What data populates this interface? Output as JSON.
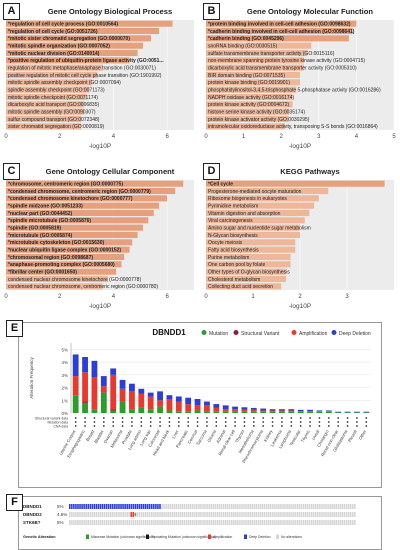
{
  "colors": {
    "bar": "#e7a07e",
    "bar_light": "#eeb79a",
    "panel_bg": "#ececec",
    "mutation": "#2a9d2a",
    "structural": "#8b1a4a",
    "amplification": "#e8392f",
    "deep_deletion": "#2b3fd6"
  },
  "panels": {
    "A": {
      "letter": "A",
      "title": "Gene Ontology Biological Process",
      "xlabel": "-log10P",
      "chart_data": {
        "type": "bar",
        "orientation": "horizontal",
        "categories": [
          "*regulation of cell cycle process (GO:0010564)",
          "*regulation of cell cycle (GO:0051726)",
          "*mitotic sister chromatid segregation (GO:0000070)",
          "*mitotic spindle organization (GO:0007052)",
          "*mitotic nuclear division (GO:0140014)",
          "*positive regulation of ubiquitin-protein ligase activity (GO:0051...",
          "regulation of mitotic metaphase/anaphase transition (GO:0030071)",
          "positive regulation of mitotic cell cycle phase transition (GO:1901992)",
          "mitotic spindle assembly checkpoint (GO:0007094)",
          "spindle assembly checkpoint (GO:0071173)",
          "mitotic spindle checkpoint (GO:0071174)",
          "dicarboxylic acid transport (GO:0006835)",
          "mitotic spindle assembly (GO:0090307)",
          "sulfur compound transport (GO:0072348)",
          "sister chromatid segregation (GO:0000819)"
        ],
        "values": [
          6.2,
          5.7,
          5.4,
          5.1,
          4.9,
          4.6,
          3.6,
          3.4,
          3.2,
          3.1,
          3.0,
          2.9,
          2.9,
          2.8,
          2.8
        ],
        "bold_count": 6,
        "xticks": [
          "0",
          "2",
          "4",
          "6"
        ],
        "xlim": [
          0,
          7
        ],
        "xlabel": "-log10P"
      }
    },
    "B": {
      "letter": "B",
      "title": "Gene Ontology Molecular Function",
      "xlabel": "-log10P",
      "chart_data": {
        "type": "bar",
        "orientation": "horizontal",
        "categories": [
          "*protein binding involved in cell-cell adhesion (GO:0098632)",
          "*cadherin binding involved in cell-cell adhesion (GO:0098641)",
          "*cadherin binding (GO:0045296)",
          "snoRNA binding (GO:0030515)",
          "sulfate transmembrane transporter activity (GO:0015116)",
          "non-membrane spanning protein tyrosine kinase activity (GO:0004715)",
          "dicarboxylic acid transmembrane transporter activity (GO:0005310)",
          "BIR domain binding (GO:0071535)",
          "protein kinase binding (GO:0019901)",
          "phosphatidylinositol-3,4,5-trisphosphate 5-phosphatase activity (GO:0016286)",
          "NADPH oxidase activity (GO:0016174)",
          "protein kinase activity (GO:0004672)",
          "histone serine kinase activity (GO:0035174)",
          "protein kinase activator activity (GO:0030295)",
          "intramolecular oxidoreductase activity, transposing S-S bonds (GO:0016864)"
        ],
        "values": [
          4.0,
          3.9,
          3.8,
          2.8,
          2.7,
          2.6,
          2.6,
          2.5,
          2.5,
          2.4,
          2.3,
          2.3,
          2.2,
          2.2,
          2.1
        ],
        "bold_count": 3,
        "xticks": [
          "0",
          "1",
          "2",
          "3",
          "4",
          "5"
        ],
        "xlim": [
          0,
          5
        ],
        "xlabel": "-log10P"
      }
    },
    "C": {
      "letter": "C",
      "title": "Gene Ontology Cellular Component",
      "xlabel": "-log10P",
      "chart_data": {
        "type": "bar",
        "orientation": "horizontal",
        "categories": [
          "*chromosome, centromeric region (GO:0000775)",
          "*condensed chromosome, centromeric region (GO:0000779)",
          "*condensed chromosome kinetochore (GO:0000777)",
          "*spindle midzone (GO:0051233)",
          "*nuclear part (GO:0044452)",
          "*spindle microtubule (GO:0005876)",
          "*spindle (GO:0005819)",
          "*microtubule (GO:0005874)",
          "*microtubule cytoskeleton (GO:0015630)",
          "*nuclear ubiquitin ligase complex (GO:0000152)",
          "*chromosomal region (GO:0098687)",
          "*anaphase-promoting complex (GO:0005680)",
          "*fibrillar center (GO:0001650)",
          "condensed nuclear chromosome kinetochore (GO:0000778)",
          "condensed nuclear chromosome, centromeric region (GO:0000780)"
        ],
        "values": [
          6.6,
          6.3,
          6.0,
          5.7,
          5.5,
          5.3,
          5.1,
          4.9,
          4.7,
          4.6,
          4.4,
          4.3,
          4.1,
          3.8,
          3.6
        ],
        "bold_count": 13,
        "xticks": [
          "0",
          "2",
          "4",
          "6"
        ],
        "xlim": [
          0,
          7
        ],
        "xlabel": "-log10P"
      }
    },
    "D": {
      "letter": "D",
      "title": "KEGG Pathways",
      "xlabel": "-log10P",
      "chart_data": {
        "type": "bar",
        "orientation": "horizontal",
        "categories": [
          "*Cell cycle",
          "Progesterone-mediated oocyte maturation",
          "Ribosome biogenesis in eukaryotes",
          "Pyrimidine metabolism",
          "Vitamin digestion and absorption",
          "Viral carcinogenesis",
          "Amino sugar and nucleotide sugar metabolism",
          "N-Glycan biosynthesis",
          "Oocyte meiosis",
          "Fatty acid biosynthesis",
          "Purine metabolism",
          "One carbon pool by folate",
          "Other types of O-glycan biosynthesis",
          "Cholesterol metabolism",
          "Collecting duct acid secretion"
        ],
        "values": [
          3.8,
          2.6,
          2.4,
          2.3,
          2.2,
          2.1,
          2.0,
          2.0,
          1.9,
          1.9,
          1.8,
          1.8,
          1.7,
          1.7,
          1.6
        ],
        "bold_count": 1,
        "xticks": [
          "0",
          "1",
          "2",
          "3"
        ],
        "xlim": [
          0,
          4
        ],
        "xlabel": "-log10P"
      }
    },
    "E": {
      "letter": "E",
      "gene": "DBNDD1",
      "ylabel": "Alteration Frequency",
      "legend": [
        "Mutation",
        "Structural Variant",
        "Amplification",
        "Deep Deletion"
      ],
      "row_labels": [
        "Structural variant data",
        "Mutation data",
        "CNA data"
      ],
      "chart_data": {
        "type": "bar",
        "stacked": true,
        "yticks": [
          "0%",
          "1%",
          "2%",
          "3%",
          "4%",
          "5%"
        ],
        "ylim": [
          0,
          5.5
        ],
        "categories": [
          "Uterine Corpus",
          "Esophagogastric",
          "Breast",
          "Bladder",
          "Ovarian",
          "Melanoma",
          "Prostate",
          "Lung adeno",
          "Lung squ",
          "Colorectal",
          "Head and Neck",
          "Liver",
          "Pancreatic",
          "Cervical",
          "Sarcoma",
          "Glioma",
          "Adrenal",
          "Renal clear cell",
          "Thyroid",
          "Mesothelioma",
          "Pheochromocytoma",
          "Kidney",
          "Leukemia",
          "Lymphoma",
          "Testicular",
          "Thymic",
          "Uveal",
          "Cholangio",
          "Renal non-clear",
          "Glioblastoma",
          "Pleural",
          "Other"
        ],
        "series": [
          {
            "name": "Mutation",
            "values": [
              1.4,
              0.8,
              0.3,
              1.6,
              0.2,
              0.9,
              0.3,
              0.4,
              0.3,
              0.5,
              0.2,
              0.1,
              0.1,
              0.2,
              0.1,
              0.1,
              0.1,
              0.1,
              0.1,
              0.1,
              0.1,
              0.1,
              0.1,
              0.1,
              0.1,
              0.1,
              0.1,
              0.1,
              0.05,
              0.05,
              0.05,
              0.05
            ]
          },
          {
            "name": "Structural Variant",
            "values": [
              0,
              0.1,
              0,
              0,
              0.1,
              0,
              0,
              0,
              0,
              0,
              0,
              0,
              0,
              0,
              0,
              0,
              0,
              0,
              0,
              0,
              0,
              0,
              0,
              0,
              0,
              0,
              0,
              0,
              0,
              0,
              0,
              0
            ]
          },
          {
            "name": "Amplification",
            "values": [
              1.5,
              2.3,
              2.5,
              0.5,
              2.7,
              1.0,
              1.4,
              1.1,
              1.0,
              0.5,
              0.9,
              0.8,
              0.6,
              0.4,
              0.5,
              0.3,
              0.2,
              0.2,
              0.15,
              0.15,
              0.1,
              0.1,
              0.1,
              0.1,
              0.05,
              0.05,
              0.05,
              0.05,
              0,
              0,
              0,
              0
            ]
          },
          {
            "name": "Deep Deletion",
            "values": [
              1.7,
              1.2,
              1.3,
              0.8,
              0.5,
              0.7,
              0.6,
              0.4,
              0.3,
              0.7,
              0.3,
              0.4,
              0.5,
              0.5,
              0.3,
              0.3,
              0.3,
              0.2,
              0.2,
              0.15,
              0.15,
              0.1,
              0.1,
              0.1,
              0.1,
              0.1,
              0.05,
              0.05,
              0.05,
              0.05,
              0.05,
              0.05
            ]
          }
        ]
      }
    },
    "F": {
      "letter": "F",
      "genes": [
        {
          "name": "DBNDD1",
          "pct": "5%"
        },
        {
          "name": "DBNDD2",
          "pct": "4.6%"
        },
        {
          "name": "STK6B?",
          "pct": "5%"
        }
      ],
      "legend_title": "Genetic Alteration",
      "legend": [
        "Missense Mutation (unknown significance)",
        "Truncating Mutation (unknown significance)",
        "Amplification",
        "Deep Deletion",
        "No alterations"
      ]
    }
  }
}
